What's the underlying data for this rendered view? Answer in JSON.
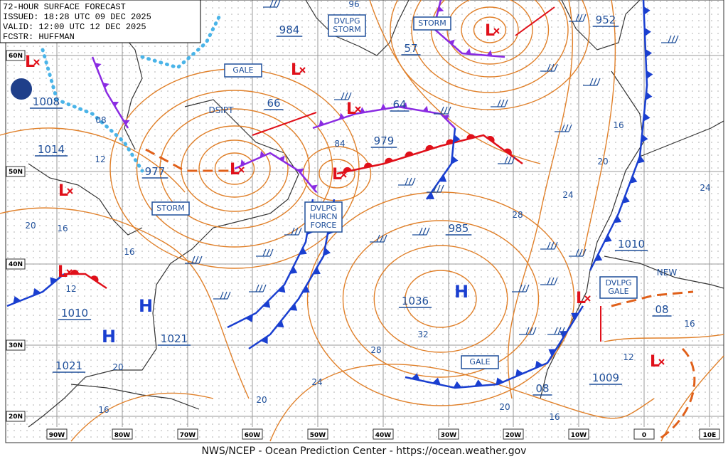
{
  "header": {
    "lines": [
      "72-HOUR SURFACE FORECAST",
      "ISSUED: 18:28 UTC 09 DEC 2025",
      "VALID: 12:00 UTC 12 DEC 2025",
      "FCSTR: HUFFMAN"
    ]
  },
  "footer": "NWS/NCEP - Ocean Prediction Center - https://ocean.weather.gov",
  "lat_labels": [
    "60N",
    "50N",
    "40N",
    "30N",
    "20N"
  ],
  "lon_labels": [
    "90W",
    "80W",
    "70W",
    "60W",
    "50W",
    "40W",
    "30W",
    "20W",
    "10W",
    "0",
    "10E"
  ],
  "warnings": [
    {
      "lines": [
        "GALE"
      ]
    },
    {
      "lines": [
        "STORM"
      ]
    },
    {
      "lines": [
        "DVLPG",
        "STORM"
      ]
    },
    {
      "lines": [
        "DVLPG",
        "HURCN",
        "FORCE"
      ]
    },
    {
      "lines": [
        "STORM"
      ]
    },
    {
      "lines": [
        "DVLPG",
        "GALE"
      ]
    },
    {
      "lines": [
        "GALE"
      ]
    }
  ],
  "pressure_labels": [
    "984",
    "1008",
    "1014",
    "977",
    "66",
    "64",
    "979",
    "57",
    "952",
    "985",
    "1036",
    "1010",
    "1021",
    "1010",
    "1021",
    "1009",
    "08",
    "08"
  ],
  "isobar_labels": [
    "96",
    "08",
    "12",
    "84",
    "16",
    "20",
    "24",
    "28",
    "20",
    "16",
    "16",
    "12",
    "20",
    "16",
    "32",
    "28",
    "24",
    "20",
    "20",
    "16",
    "16",
    "12",
    "24"
  ],
  "annotations": [
    "DSIPT",
    "NEW"
  ],
  "highs": [
    "H",
    "H",
    "H"
  ],
  "lows": [
    "L",
    "L",
    "L",
    "L",
    "L",
    "L",
    "L",
    "L",
    "L",
    "L"
  ]
}
